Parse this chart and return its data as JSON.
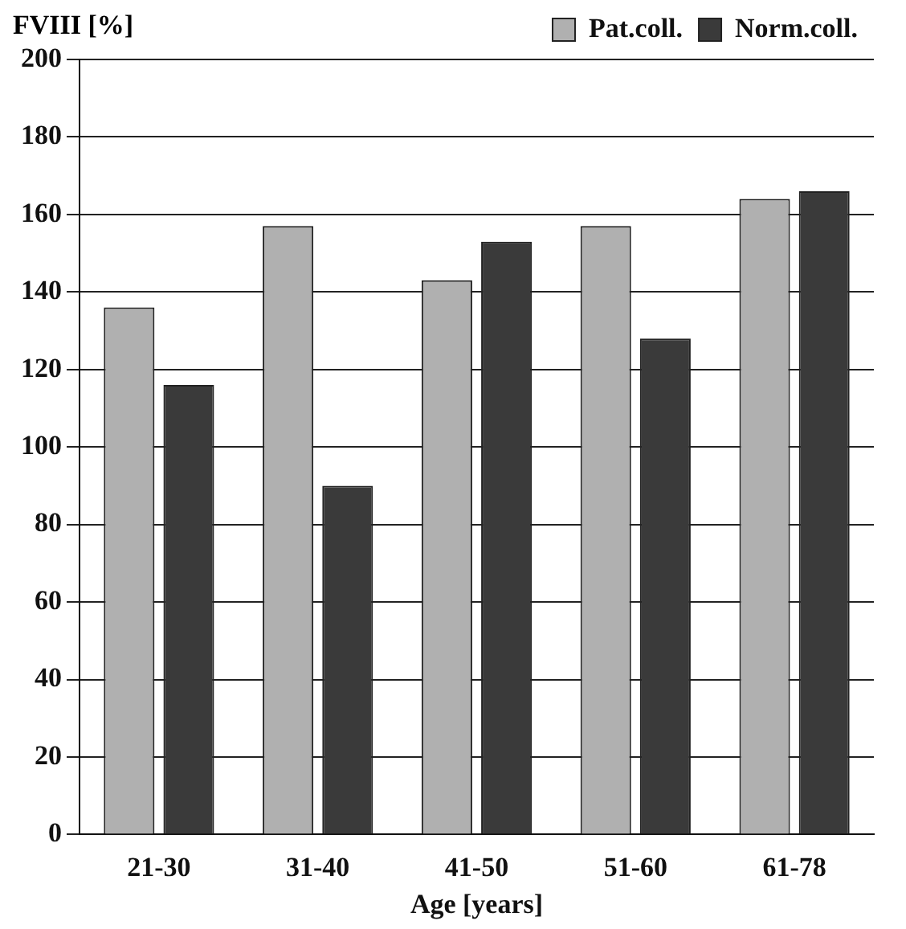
{
  "chart_data": {
    "type": "bar",
    "ylabel": "FVIII [%]",
    "xlabel": "Age [years]",
    "categories": [
      "21-30",
      "31-40",
      "41-50",
      "51-60",
      "61-78"
    ],
    "series": [
      {
        "name": "Pat.coll.",
        "color": "#b0b0b0",
        "values": [
          136,
          157,
          143,
          157,
          164
        ]
      },
      {
        "name": "Norm.coll.",
        "color": "#3a3a3a",
        "values": [
          116,
          90,
          153,
          128,
          166
        ]
      }
    ],
    "ylim": [
      0,
      200
    ],
    "yticks": [
      0,
      20,
      40,
      60,
      80,
      100,
      120,
      140,
      160,
      180,
      200
    ],
    "grid": "y",
    "legend": "top right"
  }
}
